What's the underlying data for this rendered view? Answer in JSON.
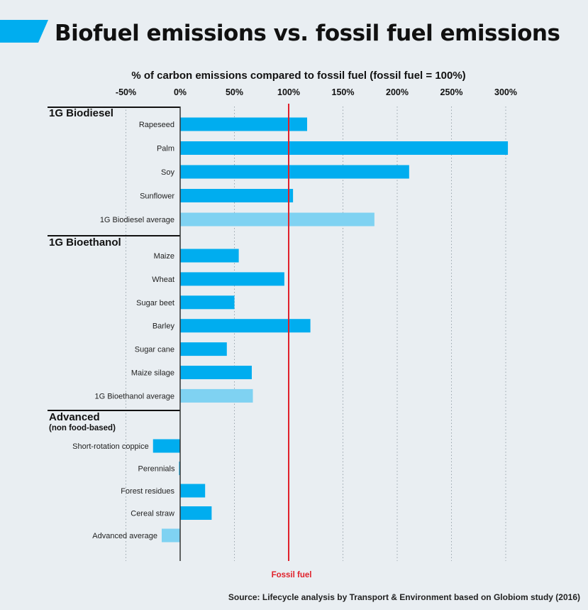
{
  "title": "Biofuel emissions vs. fossil fuel emissions",
  "source": "Source: Lifecycle analysis by Transport & Environment based on Globiom study (2016)",
  "colors": {
    "background": "#e9eef2",
    "bar": "#00adef",
    "average_bar": "#7fd2f2",
    "reference_line": "#e0202a",
    "accent_banner": "#00adef"
  },
  "chart_data": {
    "type": "bar",
    "orientation": "horizontal",
    "title": "Biofuel emissions vs. fossil fuel emissions",
    "xlabel": "% of carbon emissions compared to fossil fuel (fossil fuel = 100%)",
    "xlim": [
      -50,
      300
    ],
    "xticks": [
      "-50%",
      "0%",
      "50%",
      "100%",
      "150%",
      "200%",
      "250%",
      "300%"
    ],
    "xtick_values": [
      -50,
      0,
      50,
      100,
      150,
      200,
      250,
      300
    ],
    "grid": "vertical dotted lines at each tick",
    "reference_line": {
      "value": 100,
      "label": "Fossil fuel"
    },
    "groups": [
      {
        "name": "1G Biodiesel",
        "subtitle": "",
        "items": [
          {
            "label": "Rapeseed",
            "value": 117,
            "average": false
          },
          {
            "label": "Palm",
            "value": 302,
            "average": false
          },
          {
            "label": "Soy",
            "value": 211,
            "average": false
          },
          {
            "label": "Sunflower",
            "value": 104,
            "average": false
          },
          {
            "label": "1G Biodiesel average",
            "value": 179,
            "average": true
          }
        ]
      },
      {
        "name": "1G Bioethanol",
        "subtitle": "",
        "items": [
          {
            "label": "Maize",
            "value": 54,
            "average": false
          },
          {
            "label": "Wheat",
            "value": 96,
            "average": false
          },
          {
            "label": "Sugar beet",
            "value": 50,
            "average": false
          },
          {
            "label": "Barley",
            "value": 120,
            "average": false
          },
          {
            "label": "Sugar cane",
            "value": 43,
            "average": false
          },
          {
            "label": "Maize silage",
            "value": 66,
            "average": false
          },
          {
            "label": "1G Bioethanol average",
            "value": 67,
            "average": true
          }
        ]
      },
      {
        "name": "Advanced",
        "subtitle": "(non food-based)",
        "items": [
          {
            "label": "Short-rotation coppice",
            "value": -25,
            "average": false
          },
          {
            "label": "Perennials",
            "value": -1,
            "average": false
          },
          {
            "label": "Forest residues",
            "value": 23,
            "average": false
          },
          {
            "label": "Cereal straw",
            "value": 29,
            "average": false
          },
          {
            "label": "Advanced average",
            "value": -17,
            "average": true
          }
        ]
      }
    ]
  }
}
